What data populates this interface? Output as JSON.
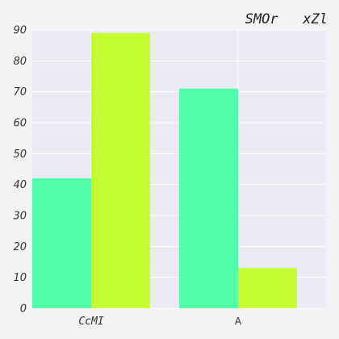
{
  "chart_data": {
    "type": "bar",
    "title": "SMOr   xZl",
    "xlabel": "",
    "ylabel": "",
    "categories": [
      "CcMI",
      "A"
    ],
    "series": [
      {
        "values": [
          42,
          71
        ],
        "color": "#50ffaa"
      },
      {
        "values": [
          89,
          13
        ],
        "color": "#c3ff32"
      }
    ],
    "ylim": [
      0,
      90
    ],
    "yticks": [
      0,
      10,
      20,
      30,
      40,
      50,
      60,
      70,
      80,
      90
    ],
    "grid": true,
    "background_color": "#eaeaf2",
    "grid_color": "#ffffff"
  }
}
